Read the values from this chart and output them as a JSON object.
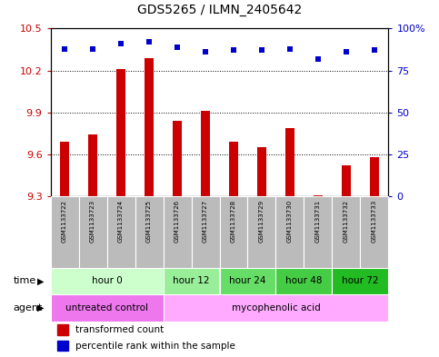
{
  "title": "GDS5265 / ILMN_2405642",
  "samples": [
    "GSM1133722",
    "GSM1133723",
    "GSM1133724",
    "GSM1133725",
    "GSM1133726",
    "GSM1133727",
    "GSM1133728",
    "GSM1133729",
    "GSM1133730",
    "GSM1133731",
    "GSM1133732",
    "GSM1133733"
  ],
  "bar_values": [
    9.69,
    9.74,
    10.21,
    10.29,
    9.84,
    9.91,
    9.69,
    9.65,
    9.79,
    9.31,
    9.52,
    9.58
  ],
  "bar_base": 9.3,
  "percentile_values": [
    88,
    88,
    91,
    92,
    89,
    86,
    87,
    87,
    88,
    82,
    86,
    87
  ],
  "percentile_scale_max": 100,
  "ylim": [
    9.3,
    10.5
  ],
  "yticks": [
    9.3,
    9.6,
    9.9,
    10.2,
    10.5
  ],
  "right_yticks": [
    0,
    25,
    50,
    75,
    100
  ],
  "right_ytick_labels": [
    "0",
    "25",
    "50",
    "75",
    "100%"
  ],
  "bar_color": "#cc0000",
  "dot_color": "#0000cc",
  "time_groups": [
    {
      "label": "hour 0",
      "start": 0,
      "end": 3,
      "color": "#ccffcc"
    },
    {
      "label": "hour 12",
      "start": 4,
      "end": 5,
      "color": "#99ee99"
    },
    {
      "label": "hour 24",
      "start": 6,
      "end": 7,
      "color": "#66dd66"
    },
    {
      "label": "hour 48",
      "start": 8,
      "end": 9,
      "color": "#44cc44"
    },
    {
      "label": "hour 72",
      "start": 10,
      "end": 11,
      "color": "#22bb22"
    }
  ],
  "agent_groups": [
    {
      "label": "untreated control",
      "start": 0,
      "end": 3,
      "color": "#ee77ee"
    },
    {
      "label": "mycophenolic acid",
      "start": 4,
      "end": 11,
      "color": "#ffaaff"
    }
  ],
  "bar_color_left_ytick": "#cc0000",
  "right_ylabel_color": "#0000cc",
  "background_color": "#ffffff",
  "sample_bg_color": "#bbbbbb",
  "bar_width": 0.3
}
